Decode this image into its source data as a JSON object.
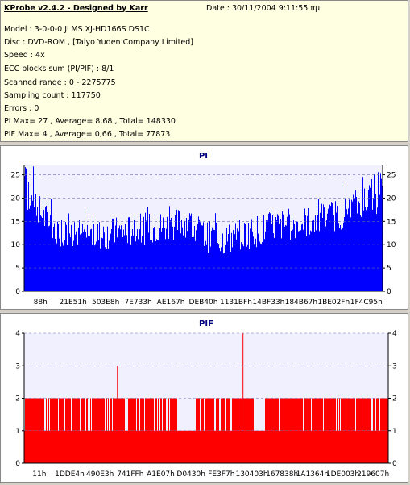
{
  "info": {
    "title": "KProbe v2.4.2 - Designed by Karr",
    "date": "Date : 30/11/2004 9:11:55 πμ",
    "lines": [
      "Model : 3-0-0-0 JLMS   XJ-HD166S       DS1C",
      "Disc : DVD-ROM ,  [Taiyo Yuden Company Limited]",
      "Speed : 4x",
      "ECC blocks sum (PI/PIF) : 8/1",
      "Scanned range : 0 - 2275775",
      "Sampling count : 117750",
      "Errors : 0",
      "PI Max= 27 , Average= 8,68 , Total= 148330",
      "PIF Max= 4 , Average= 0,66 , Total= 77873"
    ]
  },
  "chart_data": [
    {
      "type": "area",
      "title": "PI",
      "color": "#0000ff",
      "ylim": [
        0,
        27
      ],
      "yticks": [
        0,
        5,
        10,
        15,
        20,
        25
      ],
      "xticks": [
        "88h",
        "21E51h",
        "503E8h",
        "7E733h",
        "AE167h",
        "DEB40h",
        "1131BFh",
        "14BF33h",
        "184B67h",
        "1BE02Fh",
        "1F4C95h"
      ],
      "grid": "dashed horizontal",
      "profile_x": [
        0,
        0.02,
        0.05,
        0.1,
        0.2,
        0.3,
        0.4,
        0.45,
        0.5,
        0.55,
        0.6,
        0.7,
        0.8,
        0.85,
        0.9,
        0.95,
        1.0
      ],
      "profile_y": [
        19,
        21,
        16,
        13,
        12,
        13,
        14,
        15,
        12,
        11,
        12,
        14,
        15,
        16,
        17,
        20,
        18
      ]
    },
    {
      "type": "area",
      "title": "PIF",
      "color": "#ff0000",
      "ylim": [
        0,
        4
      ],
      "yticks": [
        0,
        1,
        2,
        3,
        4
      ],
      "xticks": [
        "11h",
        "1DDE4h",
        "490E3h",
        "741FFh",
        "A1E07h",
        "D0430h",
        "FE3F7h",
        "130403h",
        "167838h",
        "1A1364h",
        "1DE003h",
        "219607h"
      ],
      "grid": "dashed horizontal",
      "spikes": [
        {
          "x": 0.255,
          "y": 3
        },
        {
          "x": 0.6,
          "y": 4
        }
      ]
    }
  ]
}
